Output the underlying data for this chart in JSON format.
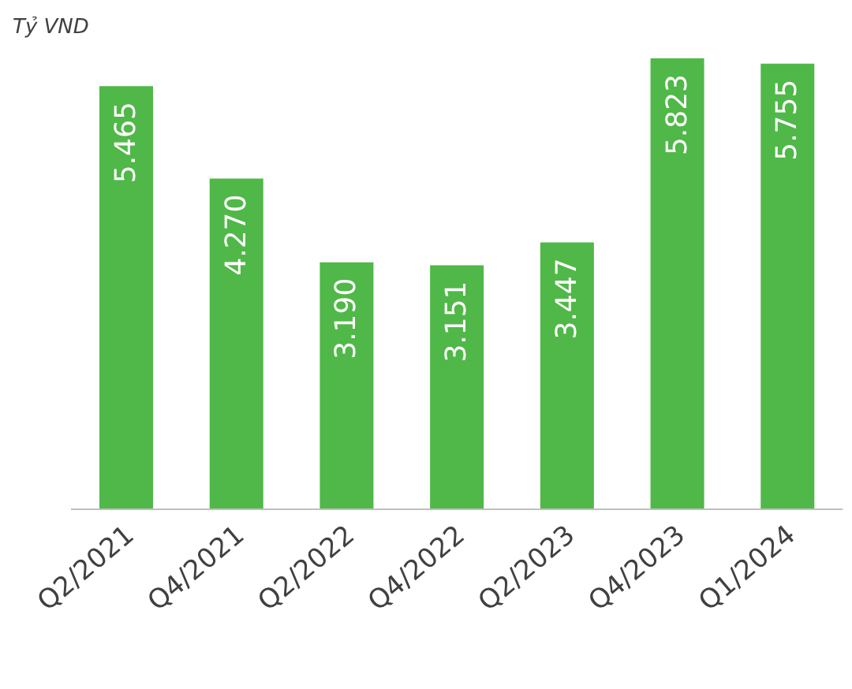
{
  "chart_data": {
    "type": "bar",
    "ylabel": "Tỷ VND",
    "categories": [
      "Q2/2021",
      "Q4/2021",
      "Q2/2022",
      "Q4/2022",
      "Q2/2023",
      "Q4/2023",
      "Q1/2024"
    ],
    "values": [
      5.465,
      4.27,
      3.19,
      3.151,
      3.447,
      5.823,
      5.755
    ],
    "color": "#50b848",
    "value_labels": [
      "5.465",
      "4.270",
      "3.190",
      "3.151",
      "3.447",
      "5.823",
      "5.755"
    ]
  }
}
